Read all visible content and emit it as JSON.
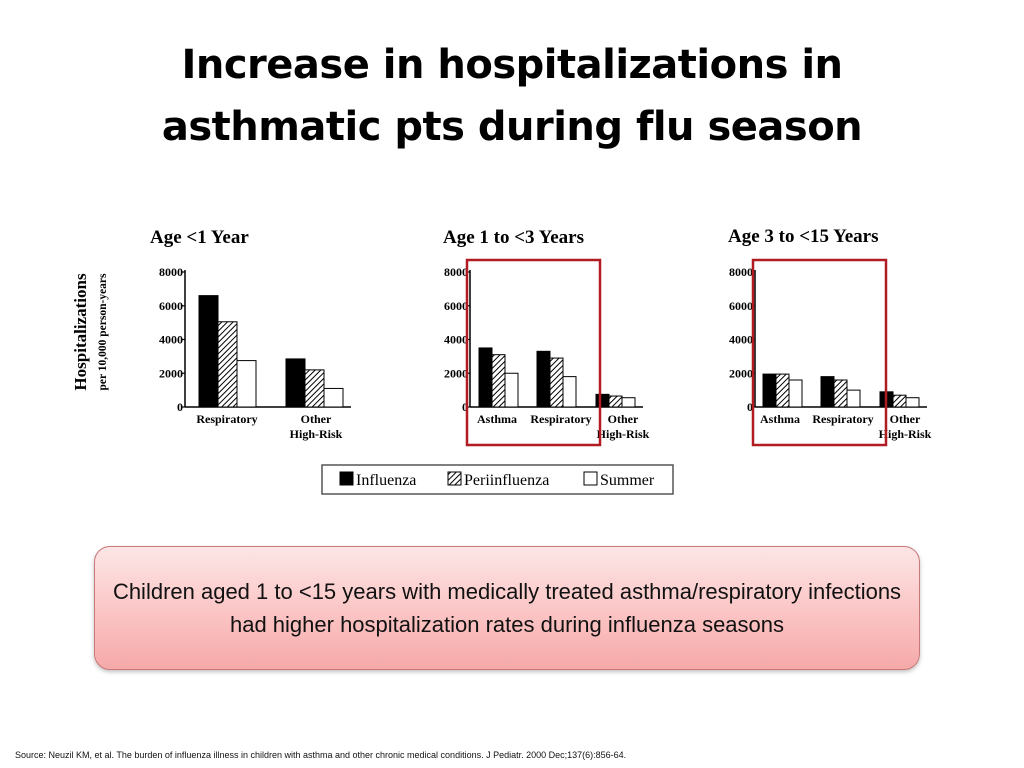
{
  "slide": {
    "title_line1": "Increase in hospitalizations in",
    "title_line2": "asthmatic pts during flu season",
    "callout_text": "Children aged 1 to <15 years with medically treated asthma/respiratory infections had higher hospitalization rates during influenza seasons",
    "source": "Source: Neuzil KM, et al. The burden of influenza illness in children with asthma and other chronic medical conditions. J Pediatr. 2000 Dec;137(6):856-64.",
    "highlight_color": "#b01c22",
    "callout_colors": [
      "#fde6e6",
      "#f6a9a9"
    ]
  },
  "y_axis": {
    "label": "Hospitalizations",
    "sublabel": "per 10,000 person-years"
  },
  "legend": [
    {
      "name": "Influenza",
      "fill": "solid-black"
    },
    {
      "name": "Periinfluenza",
      "fill": "diagonal-hatch"
    },
    {
      "name": "Summer",
      "fill": "white"
    }
  ],
  "chart_data": [
    {
      "type": "bar",
      "title": "Age <1 Year",
      "ylim": [
        0,
        8000
      ],
      "yticks": [
        "0",
        "2000",
        "4000",
        "6000",
        "8000"
      ],
      "categories": [
        "Respiratory",
        "Other High-Risk"
      ],
      "series": [
        {
          "name": "Influenza",
          "values": [
            6600,
            2850
          ]
        },
        {
          "name": "Periinfluenza",
          "values": [
            5050,
            2200
          ]
        },
        {
          "name": "Summer",
          "values": [
            2750,
            1100
          ]
        }
      ],
      "highlighted": false
    },
    {
      "type": "bar",
      "title": "Age 1 to <3 Years",
      "ylim": [
        0,
        8000
      ],
      "yticks": [
        "0",
        "2000",
        "4000",
        "6000",
        "8000"
      ],
      "categories": [
        "Asthma",
        "Respiratory",
        "Other High-Risk"
      ],
      "series": [
        {
          "name": "Influenza",
          "values": [
            3500,
            3300,
            750
          ]
        },
        {
          "name": "Periinfluenza",
          "values": [
            3100,
            2900,
            650
          ]
        },
        {
          "name": "Summer",
          "values": [
            2000,
            1800,
            550
          ]
        }
      ],
      "highlighted": true
    },
    {
      "type": "bar",
      "title": "Age 3 to <15 Years",
      "ylim": [
        0,
        8000
      ],
      "yticks": [
        "0",
        "2000",
        "4000",
        "6000",
        "8000"
      ],
      "categories": [
        "Asthma",
        "Respiratory",
        "Other High-Risk"
      ],
      "series": [
        {
          "name": "Influenza",
          "values": [
            1950,
            1800,
            900
          ]
        },
        {
          "name": "Periinfluenza",
          "values": [
            1950,
            1600,
            700
          ]
        },
        {
          "name": "Summer",
          "values": [
            1600,
            1000,
            550
          ]
        }
      ],
      "highlighted": true
    }
  ]
}
